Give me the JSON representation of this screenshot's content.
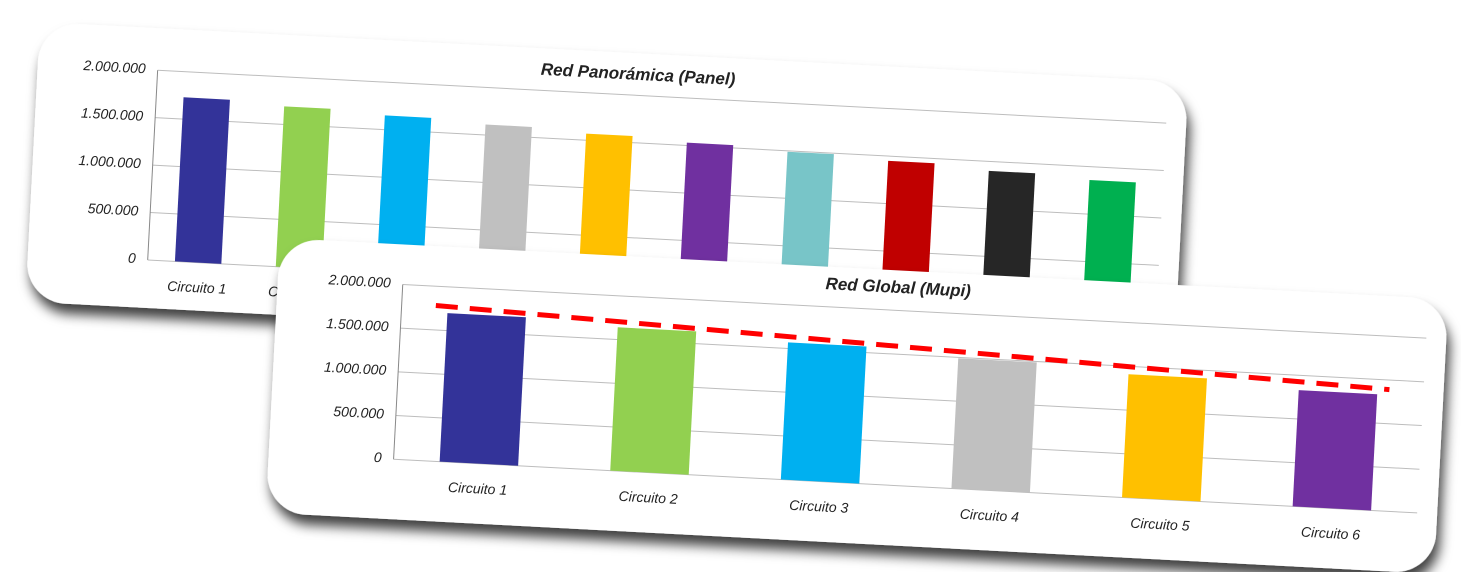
{
  "chart_data": [
    {
      "type": "bar",
      "title": "Red Panorámica (Panel)",
      "categories": [
        "Circuito 1",
        "Circuito 2",
        null,
        null,
        null,
        null,
        null,
        null,
        null,
        null
      ],
      "values": [
        1730000,
        1690000,
        1650000,
        1610000,
        1570000,
        1530000,
        1490000,
        1450000,
        1400000,
        1360000
      ],
      "colors": [
        "#333399",
        "#92d050",
        "#00b0f0",
        "#c0c0c0",
        "#ffc000",
        "#7030a0",
        "#78c5c8",
        "#c00000",
        "#262626",
        "#00b050"
      ],
      "ylim": [
        0,
        2000000
      ],
      "yticks": [
        0,
        {
          "value": 500000,
          "label": "500.000"
        },
        {
          "value": 1000000,
          "label": "1.000.000"
        },
        {
          "value": 1500000,
          "label": "1.500.000"
        },
        {
          "value": 2000000,
          "label": "2.000.000"
        }
      ],
      "grid": true
    },
    {
      "type": "bar",
      "title": "Red Global (Mupi)",
      "categories": [
        "Circuito 1",
        "Circuito 2",
        "Circuito 3",
        "Circuito 4",
        "Circuito 5",
        "Circuito 6"
      ],
      "values": [
        1700000,
        1640000,
        1570000,
        1490000,
        1410000,
        1330000
      ],
      "colors": [
        "#333399",
        "#92d050",
        "#00b0f0",
        "#c0c0c0",
        "#ffc000",
        "#7030a0"
      ],
      "ylim": [
        0,
        2000000
      ],
      "yticks": [
        0,
        {
          "value": 500000,
          "label": "500.000"
        },
        {
          "value": 1000000,
          "label": "1.000.000"
        },
        {
          "value": 1500000,
          "label": "1.500.000"
        },
        {
          "value": 2000000,
          "label": "2.000.000"
        }
      ],
      "grid": true,
      "reference_line": {
        "values": [
          1780000,
          1390000
        ],
        "color": "#ff0000",
        "dashed": true
      }
    }
  ]
}
